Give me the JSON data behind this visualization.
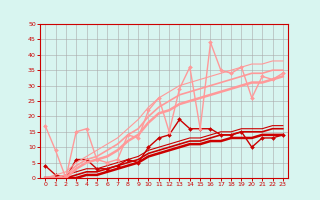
{
  "bg_color": "#d8f5f0",
  "grid_color": "#aaaaaa",
  "xlabel_color": "#cc0000",
  "tick_color": "#cc0000",
  "xlim": [
    -0.5,
    23.5
  ],
  "ylim": [
    0,
    50
  ],
  "yticks": [
    0,
    5,
    10,
    15,
    20,
    25,
    30,
    35,
    40,
    45,
    50
  ],
  "xticks": [
    0,
    1,
    2,
    3,
    4,
    5,
    6,
    7,
    8,
    9,
    10,
    11,
    12,
    13,
    14,
    15,
    16,
    17,
    18,
    19,
    20,
    21,
    22,
    23
  ],
  "lines": [
    {
      "x": [
        0,
        1,
        2,
        3,
        4,
        5,
        6,
        7,
        8,
        9,
        10,
        11,
        12,
        13,
        14,
        15,
        16,
        17,
        18,
        19,
        20,
        21,
        22,
        23
      ],
      "y": [
        4,
        1,
        0,
        6,
        6,
        3,
        3,
        4,
        6,
        5,
        10,
        13,
        14,
        19,
        16,
        16,
        16,
        14,
        14,
        15,
        10,
        13,
        13,
        14
      ],
      "color": "#cc0000",
      "lw": 1.0,
      "marker": "D",
      "ms": 2.0
    },
    {
      "x": [
        0,
        1,
        2,
        3,
        4,
        5,
        6,
        7,
        8,
        9,
        10,
        11,
        12,
        13,
        14,
        15,
        16,
        17,
        18,
        19,
        20,
        21,
        22,
        23
      ],
      "y": [
        0,
        0,
        0,
        0,
        1,
        1,
        2,
        3,
        4,
        5,
        7,
        8,
        9,
        10,
        11,
        11,
        12,
        12,
        13,
        13,
        13,
        14,
        14,
        14
      ],
      "color": "#cc0000",
      "lw": 1.8,
      "marker": null,
      "ms": 0
    },
    {
      "x": [
        0,
        1,
        2,
        3,
        4,
        5,
        6,
        7,
        8,
        9,
        10,
        11,
        12,
        13,
        14,
        15,
        16,
        17,
        18,
        19,
        20,
        21,
        22,
        23
      ],
      "y": [
        0,
        0,
        0,
        1,
        2,
        2,
        3,
        4,
        5,
        6,
        8,
        9,
        10,
        11,
        12,
        12,
        13,
        14,
        14,
        15,
        15,
        15,
        16,
        16
      ],
      "color": "#cc0000",
      "lw": 1.2,
      "marker": null,
      "ms": 0
    },
    {
      "x": [
        0,
        1,
        2,
        3,
        4,
        5,
        6,
        7,
        8,
        9,
        10,
        11,
        12,
        13,
        14,
        15,
        16,
        17,
        18,
        19,
        20,
        21,
        22,
        23
      ],
      "y": [
        0,
        0,
        1,
        2,
        3,
        3,
        4,
        5,
        6,
        7,
        9,
        10,
        11,
        12,
        13,
        13,
        14,
        15,
        15,
        16,
        16,
        16,
        17,
        17
      ],
      "color": "#cc0000",
      "lw": 0.8,
      "marker": null,
      "ms": 0
    },
    {
      "x": [
        0,
        1,
        2,
        3,
        4,
        5,
        6,
        7,
        8,
        9,
        10,
        11,
        12,
        13,
        14,
        15,
        16,
        17,
        18,
        19,
        20,
        21,
        22,
        23
      ],
      "y": [
        17,
        9,
        0,
        15,
        16,
        6,
        5,
        6,
        14,
        13,
        22,
        26,
        15,
        29,
        36,
        16,
        44,
        35,
        34,
        36,
        26,
        33,
        32,
        34
      ],
      "color": "#ff9999",
      "lw": 1.0,
      "marker": "D",
      "ms": 2.0
    },
    {
      "x": [
        0,
        1,
        2,
        3,
        4,
        5,
        6,
        7,
        8,
        9,
        10,
        11,
        12,
        13,
        14,
        15,
        16,
        17,
        18,
        19,
        20,
        21,
        22,
        23
      ],
      "y": [
        0,
        0,
        0,
        3,
        5,
        6,
        7,
        9,
        12,
        14,
        18,
        21,
        22,
        24,
        25,
        26,
        27,
        28,
        29,
        30,
        31,
        31,
        32,
        33
      ],
      "color": "#ff9999",
      "lw": 1.8,
      "marker": null,
      "ms": 0
    },
    {
      "x": [
        0,
        1,
        2,
        3,
        4,
        5,
        6,
        7,
        8,
        9,
        10,
        11,
        12,
        13,
        14,
        15,
        16,
        17,
        18,
        19,
        20,
        21,
        22,
        23
      ],
      "y": [
        0,
        0,
        1,
        4,
        6,
        7,
        9,
        11,
        14,
        16,
        20,
        23,
        25,
        27,
        28,
        29,
        30,
        31,
        32,
        33,
        34,
        34,
        35,
        35
      ],
      "color": "#ff9999",
      "lw": 1.2,
      "marker": null,
      "ms": 0
    },
    {
      "x": [
        0,
        1,
        2,
        3,
        4,
        5,
        6,
        7,
        8,
        9,
        10,
        11,
        12,
        13,
        14,
        15,
        16,
        17,
        18,
        19,
        20,
        21,
        22,
        23
      ],
      "y": [
        0,
        1,
        2,
        5,
        7,
        9,
        11,
        13,
        16,
        19,
        23,
        26,
        28,
        30,
        31,
        32,
        33,
        34,
        35,
        36,
        37,
        37,
        38,
        38
      ],
      "color": "#ff9999",
      "lw": 0.8,
      "marker": null,
      "ms": 0
    }
  ],
  "arrow_color": "#cc0000",
  "spine_color": "#cc0000"
}
